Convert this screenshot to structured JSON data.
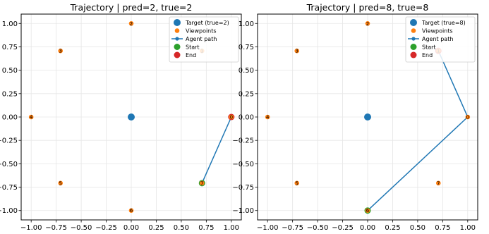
{
  "chart_data": [
    {
      "type": "scatter",
      "title": "Trajectory | pred=2, true=2",
      "xlim": [
        -1.1,
        1.1
      ],
      "ylim": [
        -1.1,
        1.1
      ],
      "grid": true,
      "xticks": [
        "−1.00",
        "−0.75",
        "−0.50",
        "−0.25",
        "0.00",
        "0.25",
        "0.50",
        "0.75",
        "1.00"
      ],
      "yticks": [
        "1.00",
        "0.75",
        "0.50",
        "0.25",
        "0.00",
        "−0.25",
        "−0.50",
        "−0.75",
        "−1.00"
      ],
      "xtick_values": [
        -1.0,
        -0.75,
        -0.5,
        -0.25,
        0.0,
        0.25,
        0.5,
        0.75,
        1.0
      ],
      "ytick_values": [
        1.0,
        0.75,
        0.5,
        0.25,
        0.0,
        -0.25,
        -0.5,
        -0.75,
        -1.0
      ],
      "target": {
        "x": 0.0,
        "y": 0.0
      },
      "viewpoints": [
        {
          "label": "0",
          "x": 1.0,
          "y": 0.0
        },
        {
          "label": "1",
          "x": 0.707,
          "y": 0.707
        },
        {
          "label": "2",
          "x": 0.0,
          "y": 1.0
        },
        {
          "label": "3",
          "x": -0.707,
          "y": 0.707
        },
        {
          "label": "4",
          "x": -1.0,
          "y": 0.0
        },
        {
          "label": "5",
          "x": -0.707,
          "y": -0.707
        },
        {
          "label": "6",
          "x": 0.0,
          "y": -1.0
        },
        {
          "label": "7",
          "x": 0.707,
          "y": -0.707
        }
      ],
      "path": [
        {
          "x": 0.707,
          "y": -0.707
        },
        {
          "x": 1.0,
          "y": 0.0
        }
      ],
      "start": {
        "x": 0.707,
        "y": -0.707
      },
      "end": {
        "x": 1.0,
        "y": 0.0
      },
      "legend": {
        "position": "top-right",
        "entries": [
          "Target (true=2)",
          "Viewpoints",
          "Agent path",
          "Start",
          "End"
        ]
      }
    },
    {
      "type": "scatter",
      "title": "Trajectory | pred=8, true=8",
      "xlim": [
        -1.1,
        1.1
      ],
      "ylim": [
        -1.1,
        1.1
      ],
      "grid": true,
      "xticks": [
        "−1.00",
        "−0.75",
        "−0.50",
        "−0.25",
        "0.00",
        "0.25",
        "0.50",
        "0.75",
        "1.00"
      ],
      "yticks": [
        "1.00",
        "0.75",
        "0.50",
        "0.25",
        "0.00",
        "−0.25",
        "−0.50",
        "−0.75",
        "−1.00"
      ],
      "xtick_values": [
        -1.0,
        -0.75,
        -0.5,
        -0.25,
        0.0,
        0.25,
        0.5,
        0.75,
        1.0
      ],
      "ytick_values": [
        1.0,
        0.75,
        0.5,
        0.25,
        0.0,
        -0.25,
        -0.5,
        -0.75,
        -1.0
      ],
      "target": {
        "x": 0.0,
        "y": 0.0
      },
      "viewpoints": [
        {
          "label": "0",
          "x": 1.0,
          "y": 0.0
        },
        {
          "label": "1",
          "x": 0.707,
          "y": 0.707
        },
        {
          "label": "2",
          "x": 0.0,
          "y": 1.0
        },
        {
          "label": "3",
          "x": -0.707,
          "y": 0.707
        },
        {
          "label": "4",
          "x": -1.0,
          "y": 0.0
        },
        {
          "label": "5",
          "x": -0.707,
          "y": -0.707
        },
        {
          "label": "6",
          "x": 0.0,
          "y": -1.0
        },
        {
          "label": "7",
          "x": 0.707,
          "y": -0.707
        }
      ],
      "path": [
        {
          "x": 0.0,
          "y": -1.0
        },
        {
          "x": 1.0,
          "y": 0.0
        },
        {
          "x": 0.707,
          "y": 0.707
        }
      ],
      "start": {
        "x": 0.0,
        "y": -1.0
      },
      "end": {
        "x": 0.707,
        "y": 0.707
      },
      "legend": {
        "position": "top-right",
        "entries": [
          "Target (true=8)",
          "Viewpoints",
          "Agent path",
          "Start",
          "End"
        ]
      }
    }
  ],
  "colors": {
    "target": "#1f77b4",
    "viewpoints": "#ff7f0e",
    "path": "#1f77b4",
    "start": "#2ca02c",
    "end": "#d62728",
    "grid": "#e6e6e6",
    "axis": "#000000"
  }
}
